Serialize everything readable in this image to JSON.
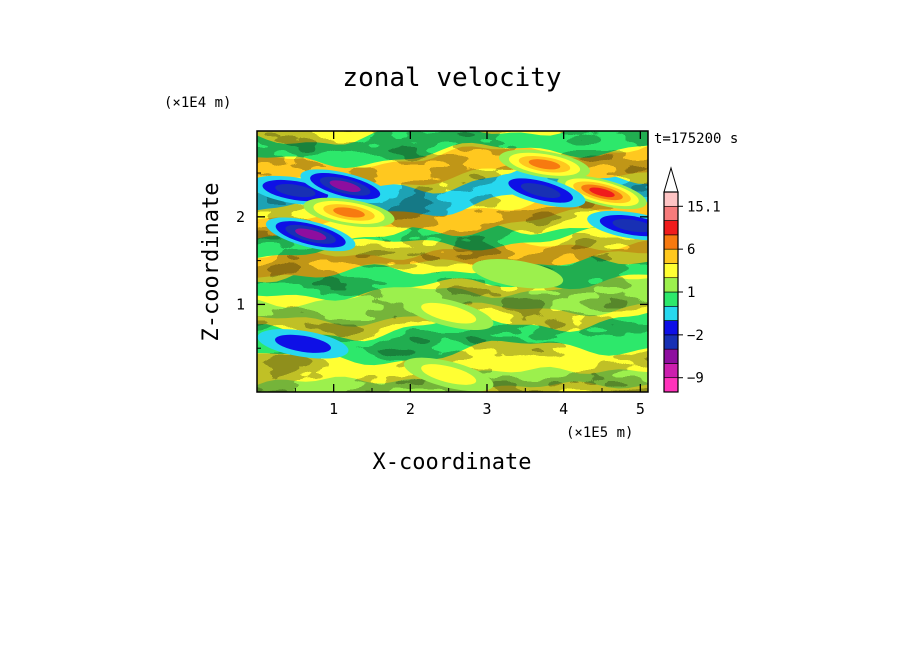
{
  "chart_data": {
    "type": "heatmap",
    "title": "zonal velocity",
    "xlabel": "X-coordinate",
    "ylabel": "Z-coordinate",
    "x_scale_label": "(×1E5 m)",
    "y_scale_label": "(×1E4 m)",
    "time_label": "t=175200 s",
    "xlim": [
      0,
      5.1
    ],
    "ylim": [
      0,
      2.98
    ],
    "x_ticks": [
      "1",
      "2",
      "3",
      "4",
      "5"
    ],
    "x_tick_values": [
      1,
      2,
      3,
      4,
      5
    ],
    "y_ticks": [
      "1",
      "2"
    ],
    "y_tick_values": [
      1,
      2
    ],
    "colorbar": {
      "levels": [
        -12,
        -9,
        -6,
        -4,
        -2,
        -1,
        0,
        1,
        2,
        3,
        6,
        9,
        12,
        15.1
      ],
      "colors": [
        "#ff33bb",
        "#cc1fae",
        "#8e0e9f",
        "#1830b4",
        "#0e10e6",
        "#27d8ef",
        "#2de86b",
        "#9cf04d",
        "#ffff33",
        "#ffc81f",
        "#f77a10",
        "#f01c1c",
        "#f77b7b",
        "#ffc4c4"
      ],
      "tick_labels": [
        "15.1",
        "6",
        "1",
        "−2",
        "−9"
      ],
      "tick_values": [
        15.1,
        6,
        1,
        -2,
        -9
      ],
      "extend": "max"
    },
    "field_features": [
      {
        "x": 0.5,
        "z": 2.3,
        "value": -4
      },
      {
        "x": 1.15,
        "z": 2.35,
        "value": -6
      },
      {
        "x": 1.2,
        "z": 2.05,
        "value": 6
      },
      {
        "x": 0.7,
        "z": 1.8,
        "value": -6
      },
      {
        "x": 3.75,
        "z": 2.6,
        "value": 6
      },
      {
        "x": 4.5,
        "z": 2.28,
        "value": 9
      },
      {
        "x": 4.9,
        "z": 1.9,
        "value": -4
      },
      {
        "x": 3.7,
        "z": 2.3,
        "value": -4
      },
      {
        "x": 3.4,
        "z": 1.35,
        "value": 1
      },
      {
        "x": 2.5,
        "z": 0.9,
        "value": 2
      },
      {
        "x": 0.6,
        "z": 0.55,
        "value": -2
      },
      {
        "x": 2.5,
        "z": 0.2,
        "value": 2
      }
    ]
  }
}
